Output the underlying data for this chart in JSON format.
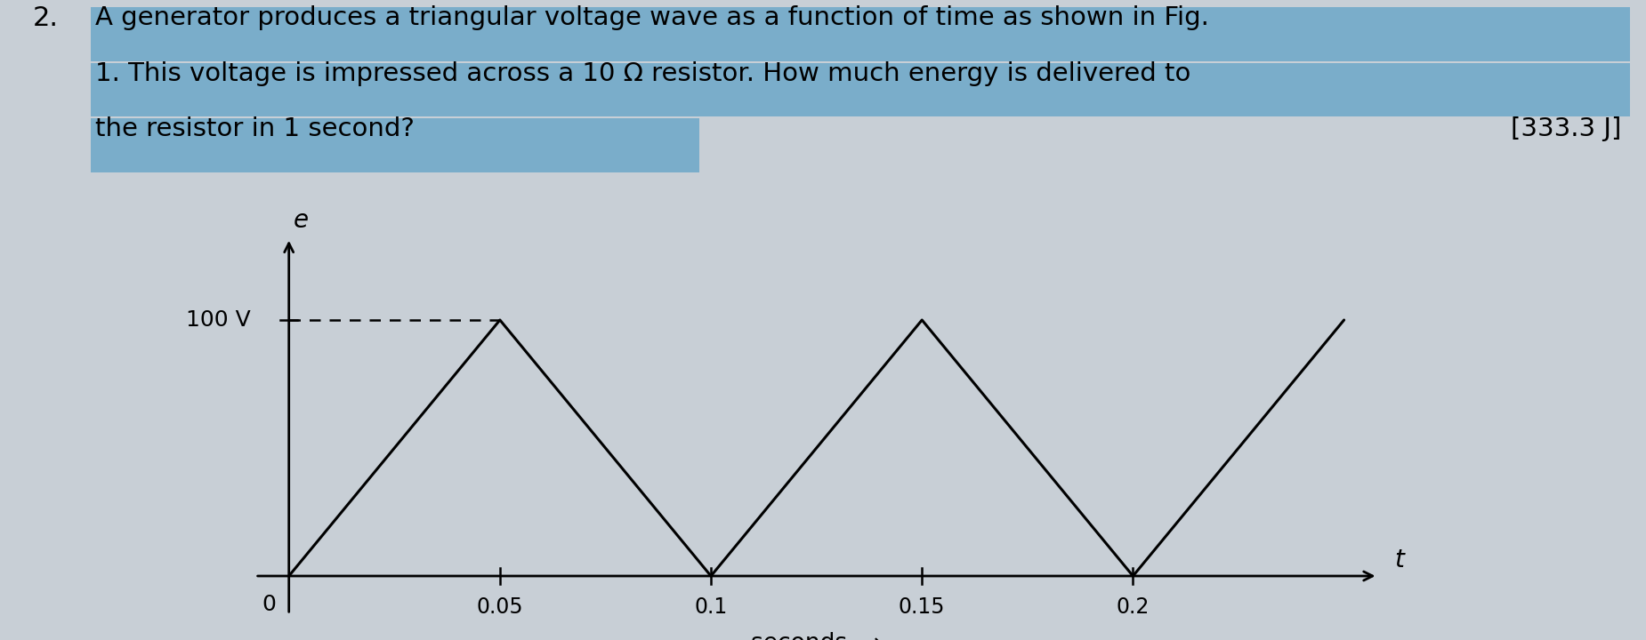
{
  "highlight_color": "#7aadca",
  "wave_x": [
    0,
    0.05,
    0.1,
    0.15,
    0.2,
    0.25
  ],
  "wave_y": [
    0,
    100,
    0,
    100,
    0,
    100
  ],
  "xlim": [
    -0.008,
    0.265
  ],
  "ylim": [
    -15,
    140
  ],
  "x_ticks": [
    0.05,
    0.1,
    0.15,
    0.2
  ],
  "x_tick_labels": [
    "0.05",
    "0.1",
    "0.15",
    "0.2"
  ],
  "dashed_line_x": [
    0,
    0.05
  ],
  "dashed_line_y": [
    100,
    100
  ],
  "line_color": "#000000",
  "background_color": "#c8cfd6",
  "fig_width": 18.5,
  "fig_height": 7.2,
  "text_line1": "A generator produces a triangular voltage wave as a function of time as shown in Fig.",
  "text_line2": "1. This voltage is impressed across a 10 Ω resistor. How much energy is delivered to",
  "text_line3": "the resistor in 1 second?",
  "answer_text": "[333.3 J]",
  "number_prefix": "2."
}
